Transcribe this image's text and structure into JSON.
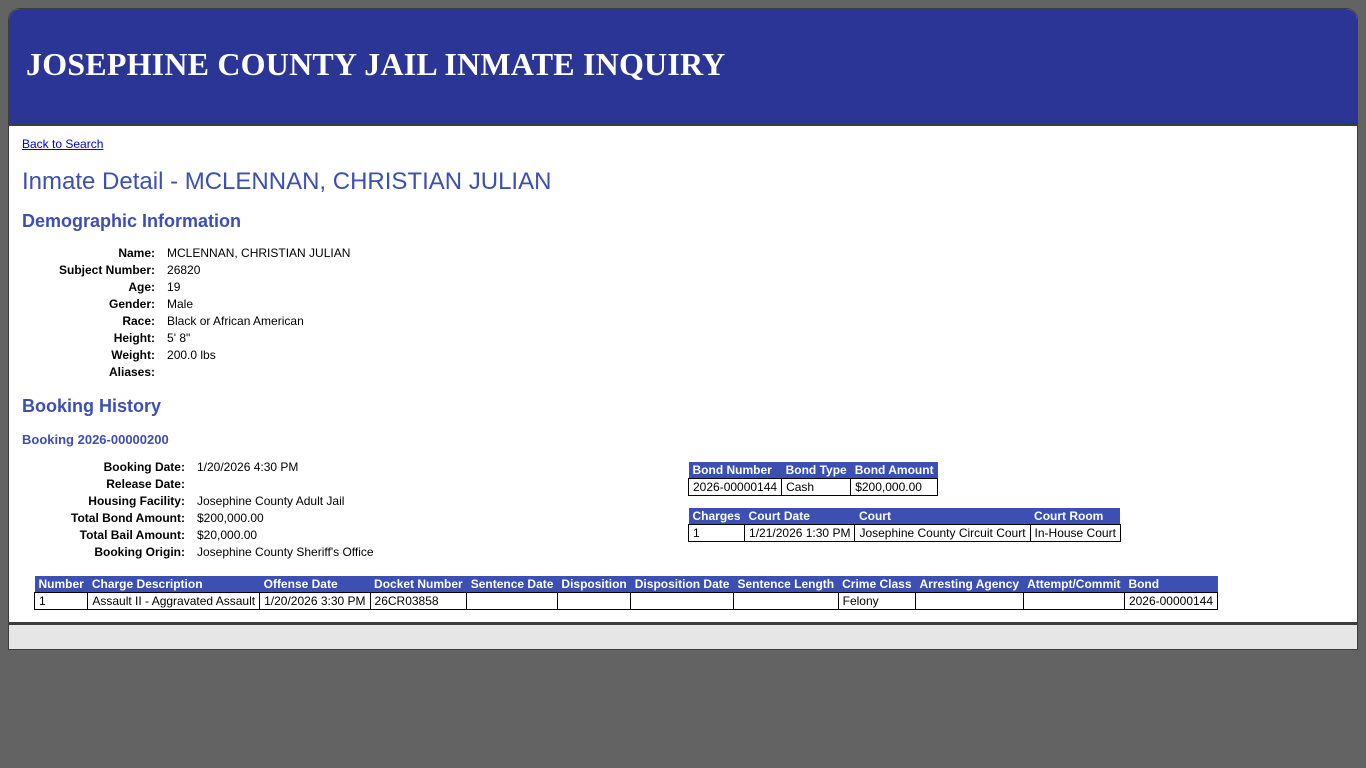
{
  "header": {
    "title": "JOSEPHINE COUNTY JAIL INMATE INQUIRY"
  },
  "nav": {
    "back_link": "Back to Search"
  },
  "page_title": "Inmate Detail - MCLENNAN, CHRISTIAN JULIAN",
  "demographics": {
    "heading": "Demographic Information",
    "fields": [
      {
        "label": "Name:",
        "value": "MCLENNAN, CHRISTIAN JULIAN"
      },
      {
        "label": "Subject Number:",
        "value": "26820"
      },
      {
        "label": "Age:",
        "value": "19"
      },
      {
        "label": "Gender:",
        "value": "Male"
      },
      {
        "label": "Race:",
        "value": "Black or African American"
      },
      {
        "label": "Height:",
        "value": "5' 8\""
      },
      {
        "label": "Weight:",
        "value": "200.0 lbs"
      },
      {
        "label": "Aliases:",
        "value": ""
      }
    ]
  },
  "booking_history": {
    "heading": "Booking History",
    "booking": {
      "heading": "Booking 2026-00000200",
      "fields": [
        {
          "label": "Booking Date:",
          "value": "1/20/2026 4:30 PM"
        },
        {
          "label": "Release Date:",
          "value": ""
        },
        {
          "label": "Housing Facility:",
          "value": "Josephine County Adult Jail"
        },
        {
          "label": "Total Bond Amount:",
          "value": "$200,000.00"
        },
        {
          "label": "Total Bail Amount:",
          "value": "$20,000.00"
        },
        {
          "label": "Booking Origin:",
          "value": "Josephine County Sheriff's Office"
        }
      ],
      "bonds": {
        "columns": [
          "Bond Number",
          "Bond Type",
          "Bond Amount"
        ],
        "rows": [
          [
            "2026-00000144",
            "Cash",
            "$200,000.00"
          ]
        ]
      },
      "court": {
        "columns": [
          "Charges",
          "Court Date",
          "Court",
          "Court Room"
        ],
        "rows": [
          [
            "1",
            "1/21/2026 1:30 PM",
            "Josephine County Circuit Court",
            "In-House Court"
          ]
        ]
      },
      "charges": {
        "columns": [
          "Number",
          "Charge Description",
          "Offense Date",
          "Docket Number",
          "Sentence Date",
          "Disposition",
          "Disposition Date",
          "Sentence Length",
          "Crime Class",
          "Arresting Agency",
          "Attempt/Commit",
          "Bond"
        ],
        "rows": [
          [
            "1",
            "Assault II - Aggravated Assault",
            "1/20/2026 3:30 PM",
            "26CR03858",
            "",
            "",
            "",
            "",
            "Felony",
            "",
            "",
            "2026-00000144"
          ]
        ]
      }
    }
  }
}
